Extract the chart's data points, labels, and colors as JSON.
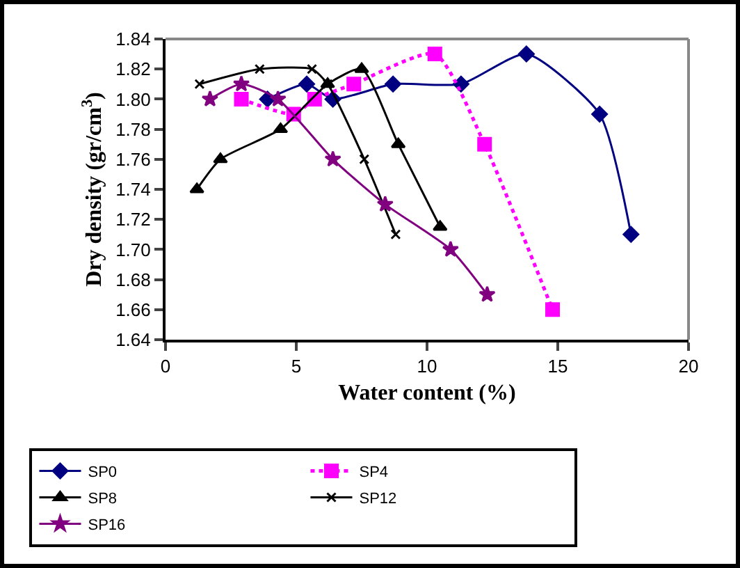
{
  "chart_data": {
    "type": "line",
    "xlabel": "Water content (%)",
    "ylabel": "Dry density (gr/cm$^{3}$)",
    "xlim": [
      0,
      20
    ],
    "xticks": [
      0,
      5,
      10,
      15,
      20
    ],
    "ylim": [
      1.64,
      1.84
    ],
    "yticks": [
      1.64,
      1.66,
      1.68,
      {
        "value": 1.7,
        "label": "1.70"
      },
      1.72,
      1.74,
      1.76,
      1.78,
      {
        "value": 1.8,
        "label": "1.80"
      },
      1.82,
      1.84
    ],
    "grid": false,
    "legend": "bottom",
    "series": [
      {
        "name": "SP0",
        "color": "#000080",
        "marker": "diamond",
        "line_style": "solid",
        "x": [
          3.9,
          5.4,
          6.4,
          8.7,
          11.3,
          13.8,
          16.6,
          17.8
        ],
        "values": [
          1.8,
          1.81,
          1.8,
          1.81,
          1.81,
          1.83,
          1.79,
          1.71
        ]
      },
      {
        "name": "SP4",
        "color": "#ff00ff",
        "marker": "square",
        "line_style": "dotted",
        "x": [
          2.9,
          4.9,
          5.7,
          7.2,
          10.3,
          12.2,
          14.8
        ],
        "values": [
          1.8,
          1.79,
          1.8,
          1.81,
          1.83,
          1.77,
          1.66
        ]
      },
      {
        "name": "SP8",
        "color": "#000000",
        "marker": "triangle",
        "line_style": "solid",
        "x": [
          1.2,
          2.1,
          4.4,
          6.2,
          7.5,
          8.9,
          10.5
        ],
        "values": [
          1.74,
          1.76,
          1.78,
          1.81,
          1.82,
          1.77,
          1.715
        ]
      },
      {
        "name": "SP12",
        "color": "#000000",
        "marker": "cross",
        "line_style": "solid",
        "x": [
          1.3,
          3.6,
          5.6,
          6.2,
          7.6,
          8.8
        ],
        "values": [
          1.81,
          1.82,
          1.82,
          1.81,
          1.76,
          1.71
        ]
      },
      {
        "name": "SP16",
        "color": "#800080",
        "marker": "star",
        "line_style": "solid",
        "x": [
          1.7,
          2.9,
          4.3,
          6.4,
          8.4,
          10.9,
          12.3
        ],
        "values": [
          1.8,
          1.81,
          1.8,
          1.76,
          1.73,
          1.7,
          1.67
        ]
      }
    ]
  }
}
